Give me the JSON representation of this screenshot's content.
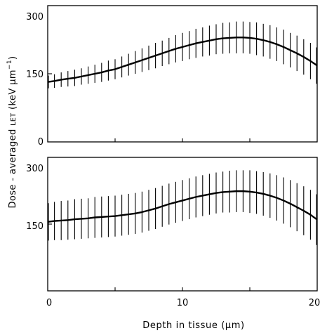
{
  "chart_data": [
    {
      "type": "line",
      "panel": "top",
      "xlim": [
        0,
        20
      ],
      "ylim": [
        0,
        300
      ],
      "y_ticks": [
        0,
        150,
        300
      ],
      "x_ticks_labeled": false,
      "error_bars": true,
      "x": [
        0.0,
        0.5,
        1.0,
        1.5,
        2.0,
        2.5,
        3.0,
        3.5,
        4.0,
        4.5,
        5.0,
        5.5,
        6.0,
        6.5,
        7.0,
        7.5,
        8.0,
        8.5,
        9.0,
        9.5,
        10.0,
        10.5,
        11.0,
        11.5,
        12.0,
        12.5,
        13.0,
        13.5,
        14.0,
        14.5,
        15.0,
        15.5,
        16.0,
        16.5,
        17.0,
        17.5,
        18.0,
        18.5,
        19.0,
        19.5,
        20.0
      ],
      "y": [
        132,
        134,
        137,
        139,
        141,
        144,
        147,
        150,
        153,
        157,
        160,
        165,
        170,
        175,
        180,
        185,
        190,
        195,
        200,
        205,
        209,
        213,
        217,
        220,
        223,
        226,
        228,
        229,
        230,
        230,
        229,
        227,
        224,
        220,
        215,
        209,
        202,
        195,
        187,
        178,
        168
      ],
      "err": [
        14,
        15,
        16,
        17,
        18,
        18,
        19,
        20,
        21,
        22,
        22,
        23,
        24,
        25,
        26,
        27,
        28,
        28,
        29,
        30,
        31,
        31,
        32,
        32,
        33,
        33,
        34,
        34,
        35,
        35,
        35,
        36,
        36,
        37,
        37,
        38,
        38,
        39,
        39,
        40,
        40
      ]
    },
    {
      "type": "line",
      "panel": "bottom",
      "xlim": [
        0,
        20
      ],
      "ylim": [
        0,
        300
      ],
      "y_ticks": [
        150,
        300
      ],
      "x_ticks": [
        0,
        10,
        20
      ],
      "xlabel": "Depth in tissue (μm)",
      "ylabel": "Dose - averaged LET (keV μm⁻¹)",
      "error_bars": true,
      "x": [
        0.0,
        0.5,
        1.0,
        1.5,
        2.0,
        2.5,
        3.0,
        3.5,
        4.0,
        4.5,
        5.0,
        5.5,
        6.0,
        6.5,
        7.0,
        7.5,
        8.0,
        8.5,
        9.0,
        9.5,
        10.0,
        10.5,
        11.0,
        11.5,
        12.0,
        12.5,
        13.0,
        13.5,
        14.0,
        14.5,
        15.0,
        15.5,
        16.0,
        16.5,
        17.0,
        17.5,
        18.0,
        18.5,
        19.0,
        19.5,
        20.0
      ],
      "y": [
        155,
        157,
        158,
        159,
        161,
        162,
        163,
        165,
        166,
        167,
        168,
        170,
        172,
        174,
        177,
        181,
        185,
        190,
        195,
        199,
        203,
        207,
        211,
        214,
        217,
        220,
        222,
        223,
        224,
        224,
        223,
        221,
        218,
        214,
        209,
        203,
        196,
        188,
        180,
        171,
        160
      ],
      "err": [
        42,
        43,
        44,
        44,
        45,
        45,
        45,
        46,
        46,
        46,
        46,
        46,
        46,
        46,
        46,
        46,
        46,
        46,
        46,
        46,
        46,
        46,
        46,
        46,
        46,
        46,
        46,
        47,
        47,
        47,
        48,
        48,
        49,
        50,
        51,
        52,
        53,
        54,
        55,
        56,
        57
      ]
    }
  ],
  "labels": {
    "top_y_ticks": [
      "0",
      "150",
      "300"
    ],
    "bottom_y_ticks": [
      "150",
      "300"
    ],
    "bottom_x_ticks": [
      "0",
      "10",
      "20"
    ],
    "xlabel": "Depth in tissue (μm)",
    "ylabel_main": "Dose - averaged ",
    "ylabel_let": "LET",
    "ylabel_unit": " (keV μm",
    "ylabel_sup": "−1",
    "ylabel_close": ")"
  }
}
